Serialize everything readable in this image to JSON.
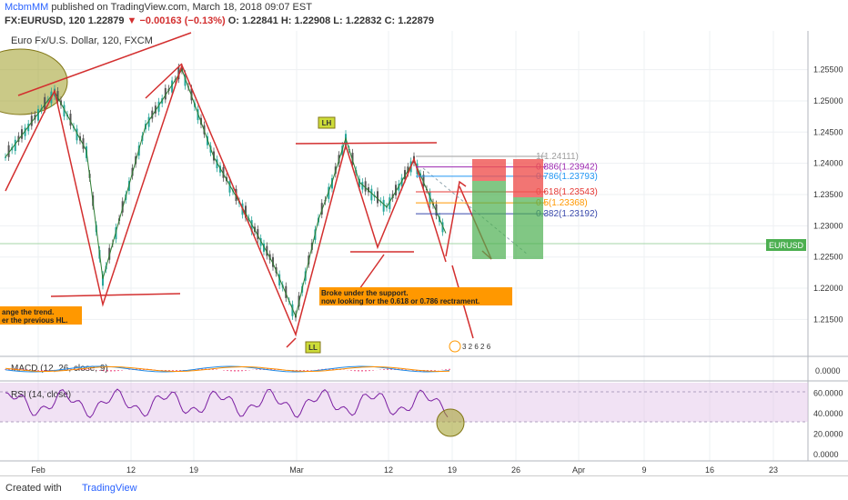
{
  "header": {
    "author": "McbmMM",
    "published_text": "published on TradingView.com, March 18, 2018 09:07 EST",
    "symbol": "FX:EURUSD, 120",
    "last": "1.22879",
    "change": "−0.00163 (−0.13%)",
    "ohlc": "O: 1.22841 H: 1.22908 L: 1.22832 C: 1.22879"
  },
  "chart_title": "Euro Fx/U.S. Dollar, 120, FXCM",
  "price_axis": {
    "ticks": [
      "1.25500",
      "1.25000",
      "1.24500",
      "1.24000",
      "1.23500",
      "1.23000",
      "1.22500",
      "1.22000",
      "1.21500"
    ],
    "range": [
      1.212,
      1.258
    ],
    "symbol_tag": "EURUSD"
  },
  "macd": {
    "label": "MACD (12, 26, close, 9)",
    "tick": "0.0000"
  },
  "rsi": {
    "label": "RSI (14, close)",
    "ticks": [
      "60.0000",
      "40.0000",
      "20.0000",
      "0.0000"
    ],
    "range": [
      0,
      70
    ]
  },
  "time_axis": {
    "labels": [
      "Feb",
      "12",
      "19",
      "Mar",
      "12",
      "19",
      "26",
      "Apr",
      "9",
      "16",
      "23"
    ]
  },
  "annotations": {
    "lh": "LH",
    "ll": "LL",
    "left_note_1": "ange the trend.",
    "left_note_2": "er the previous HL.",
    "break_note_1": "Broke under the support.",
    "break_note_2": "now looking for the 0.618 or 0.786 rectrament.",
    "events": "3 2 6 2 6"
  },
  "fib_levels": [
    {
      "ratio": "1",
      "price": "1.24111",
      "color": "#9e9e9e"
    },
    {
      "ratio": "0.886",
      "price": "1.23942",
      "color": "#9c27b0"
    },
    {
      "ratio": "0.786",
      "price": "1.23793",
      "color": "#2196f3"
    },
    {
      "ratio": "0.618",
      "price": "1.23543",
      "color": "#e53935"
    },
    {
      "ratio": "0.5",
      "price": "1.23368",
      "color": "#ff9800"
    },
    {
      "ratio": "0.382",
      "price": "1.23192",
      "color": "#3949ab"
    }
  ],
  "footer": {
    "created": "Created with",
    "brand": "TradingView"
  },
  "chart_data": {
    "type": "line",
    "title": "Euro Fx/U.S. Dollar, 120, FXCM",
    "xlabel": "",
    "ylabel": "",
    "x": [
      "Jan 28",
      "Feb 1",
      "Feb 6",
      "Feb 9",
      "Feb 14",
      "Feb 16",
      "Feb 20",
      "Feb 23",
      "Feb 27",
      "Mar 1",
      "Mar 2",
      "Mar 5",
      "Mar 8",
      "Mar 9",
      "Mar 13",
      "Mar 15",
      "Mar 16"
    ],
    "series": [
      {
        "values": [
          1.241,
          1.2515,
          1.242,
          1.2215,
          1.246,
          1.255,
          1.241,
          1.232,
          1.224,
          1.2155,
          1.231,
          1.237,
          1.244,
          1.237,
          1.233,
          1.2405,
          1.2288
        ]
      }
    ],
    "ylim": [
      1.212,
      1.258
    ],
    "grid": true
  }
}
